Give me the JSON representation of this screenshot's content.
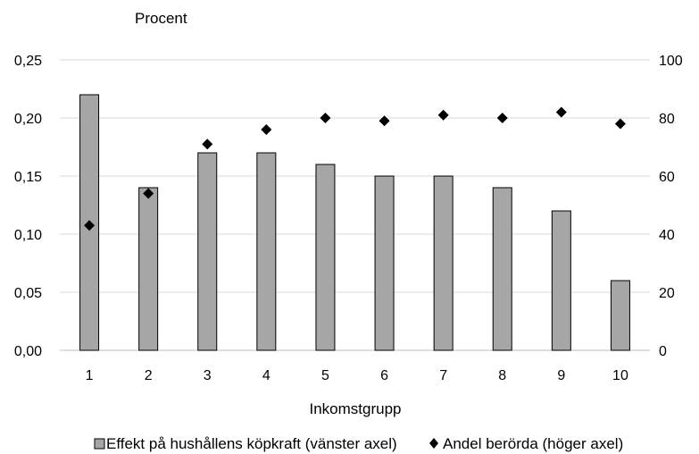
{
  "chart_data": {
    "type": "bar",
    "unit_label": "Procent",
    "xlabel": "Inkomstgrupp",
    "categories": [
      "1",
      "2",
      "3",
      "4",
      "5",
      "6",
      "7",
      "8",
      "9",
      "10"
    ],
    "y_left": {
      "ylim": [
        0,
        0.25
      ],
      "ticks": [
        "0,00",
        "0,05",
        "0,10",
        "0,15",
        "0,20",
        "0,25"
      ],
      "tick_values": [
        0,
        0.05,
        0.1,
        0.15,
        0.2,
        0.25
      ]
    },
    "y_right": {
      "ylim": [
        0,
        100
      ],
      "ticks": [
        "0",
        "20",
        "40",
        "60",
        "80",
        "100"
      ],
      "tick_values": [
        0,
        20,
        40,
        60,
        80,
        100
      ]
    },
    "grid": true,
    "legend_position": "bottom",
    "series": [
      {
        "name": "Effekt på hushållens köpkraft (vänster axel)",
        "type": "bar",
        "axis": "left",
        "color": "#a6a6a6",
        "values": [
          0.22,
          0.14,
          0.17,
          0.17,
          0.16,
          0.15,
          0.15,
          0.14,
          0.12,
          0.06
        ]
      },
      {
        "name": "Andel berörda (höger axel)",
        "type": "scatter",
        "marker": "diamond",
        "axis": "right",
        "color": "#000000",
        "values": [
          43,
          54,
          71,
          76,
          80,
          79,
          81,
          80,
          82,
          78
        ]
      }
    ]
  }
}
